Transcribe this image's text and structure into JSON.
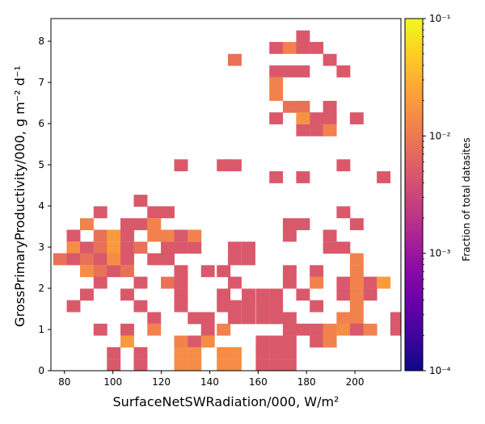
{
  "chart_data": {
    "type": "heatmap",
    "xlabel": "SurfaceNetSWRadiation/000,  W/m²",
    "ylabel": "GrossPrimaryProductivity/000,  g m⁻² d⁻¹",
    "x_ticks": [
      "80",
      "100",
      "120",
      "140",
      "160",
      "180",
      "200"
    ],
    "x_tick_values": [
      80,
      100,
      120,
      140,
      160,
      180,
      200
    ],
    "y_ticks": [
      "0",
      "1",
      "2",
      "3",
      "4",
      "5",
      "6",
      "7",
      "8"
    ],
    "y_tick_values": [
      0,
      1,
      2,
      3,
      4,
      5,
      6,
      7,
      8
    ],
    "xlim": [
      74.4,
      219.0
    ],
    "ylim": [
      0,
      8.55
    ],
    "bin_width_x": 5.55,
    "bin_height_y": 0.285,
    "colorbar": {
      "label": "Fraction of total datasites",
      "scale": "log",
      "range": [
        0.0001,
        0.1
      ],
      "tick_labels": [
        "10⁻⁴",
        "10⁻³",
        "10⁻²",
        "10⁻¹"
      ],
      "tick_values": [
        0.0001,
        0.001,
        0.01,
        0.1
      ],
      "colormap": "plasma"
    },
    "cells": [
      [
        178.5,
        8.12,
        0.0048
      ],
      [
        167.4,
        7.84,
        0.0048
      ],
      [
        173.0,
        7.84,
        0.012
      ],
      [
        178.5,
        7.84,
        0.0048
      ],
      [
        184.1,
        7.84,
        0.0048
      ],
      [
        150.3,
        7.55,
        0.0084
      ],
      [
        189.6,
        7.55,
        0.0048
      ],
      [
        167.4,
        7.27,
        0.0048
      ],
      [
        173.0,
        7.27,
        0.0048
      ],
      [
        178.5,
        7.27,
        0.0048
      ],
      [
        195.2,
        7.27,
        0.0048
      ],
      [
        167.4,
        6.98,
        0.012
      ],
      [
        167.4,
        6.7,
        0.012
      ],
      [
        173.0,
        6.41,
        0.0084
      ],
      [
        178.5,
        6.41,
        0.0084
      ],
      [
        189.6,
        6.41,
        0.0048
      ],
      [
        167.4,
        6.13,
        0.0048
      ],
      [
        178.5,
        6.13,
        0.017
      ],
      [
        184.1,
        6.13,
        0.0048
      ],
      [
        189.6,
        6.13,
        0.0048
      ],
      [
        200.7,
        6.13,
        0.0048
      ],
      [
        178.5,
        5.84,
        0.0048
      ],
      [
        184.1,
        5.84,
        0.0048
      ],
      [
        189.6,
        5.84,
        0.012
      ],
      [
        128.1,
        4.99,
        0.0048
      ],
      [
        145.7,
        4.99,
        0.0048
      ],
      [
        150.3,
        4.99,
        0.0048
      ],
      [
        195.2,
        4.99,
        0.0048
      ],
      [
        167.4,
        4.7,
        0.0048
      ],
      [
        178.5,
        4.7,
        0.0048
      ],
      [
        211.8,
        4.7,
        0.0048
      ],
      [
        111.4,
        4.13,
        0.0048
      ],
      [
        94.8,
        3.85,
        0.0048
      ],
      [
        117.0,
        3.85,
        0.0048
      ],
      [
        122.6,
        3.85,
        0.0048
      ],
      [
        195.2,
        3.85,
        0.0048
      ],
      [
        89.2,
        3.56,
        0.012
      ],
      [
        105.9,
        3.56,
        0.0048
      ],
      [
        111.4,
        3.56,
        0.0048
      ],
      [
        117.0,
        3.56,
        0.012
      ],
      [
        173.0,
        3.56,
        0.0048
      ],
      [
        178.5,
        3.56,
        0.0048
      ],
      [
        200.7,
        3.56,
        0.0048
      ],
      [
        83.7,
        3.28,
        0.0048
      ],
      [
        94.8,
        3.28,
        0.0084
      ],
      [
        100.3,
        3.28,
        0.02
      ],
      [
        105.9,
        3.28,
        0.0048
      ],
      [
        117.0,
        3.28,
        0.012
      ],
      [
        122.6,
        3.28,
        0.012
      ],
      [
        128.1,
        3.28,
        0.0048
      ],
      [
        133.7,
        3.28,
        0.012
      ],
      [
        173.0,
        3.28,
        0.0048
      ],
      [
        189.6,
        3.28,
        0.0048
      ],
      [
        83.7,
        2.99,
        0.015
      ],
      [
        89.2,
        2.99,
        0.0048
      ],
      [
        94.8,
        2.99,
        0.0084
      ],
      [
        100.3,
        2.99,
        0.02
      ],
      [
        105.9,
        2.99,
        0.0048
      ],
      [
        111.4,
        2.99,
        0.0084
      ],
      [
        122.6,
        2.99,
        0.0048
      ],
      [
        128.1,
        2.99,
        0.0048
      ],
      [
        133.7,
        2.99,
        0.0048
      ],
      [
        150.3,
        2.99,
        0.0048
      ],
      [
        156.0,
        2.99,
        0.0048
      ],
      [
        189.6,
        2.99,
        0.0048
      ],
      [
        195.2,
        2.99,
        0.0048
      ],
      [
        78.1,
        2.71,
        0.0084
      ],
      [
        83.7,
        2.71,
        0.0048
      ],
      [
        89.2,
        2.71,
        0.0084
      ],
      [
        94.8,
        2.71,
        0.0048
      ],
      [
        100.3,
        2.71,
        0.015
      ],
      [
        105.9,
        2.71,
        0.0048
      ],
      [
        117.0,
        2.71,
        0.0048
      ],
      [
        122.6,
        2.71,
        0.0048
      ],
      [
        150.3,
        2.71,
        0.0048
      ],
      [
        156.0,
        2.71,
        0.0048
      ],
      [
        200.7,
        2.71,
        0.012
      ],
      [
        89.2,
        2.42,
        0.015
      ],
      [
        94.8,
        2.42,
        0.0084
      ],
      [
        100.3,
        2.42,
        0.0048
      ],
      [
        105.9,
        2.42,
        0.0084
      ],
      [
        128.1,
        2.42,
        0.0048
      ],
      [
        139.2,
        2.42,
        0.0048
      ],
      [
        145.7,
        2.42,
        0.0048
      ],
      [
        173.0,
        2.42,
        0.0048
      ],
      [
        184.1,
        2.42,
        0.0048
      ],
      [
        200.7,
        2.42,
        0.012
      ],
      [
        94.8,
        2.14,
        0.0048
      ],
      [
        111.4,
        2.14,
        0.0048
      ],
      [
        122.6,
        2.14,
        0.0084
      ],
      [
        128.1,
        2.14,
        0.0048
      ],
      [
        150.3,
        2.14,
        0.0048
      ],
      [
        173.0,
        2.14,
        0.0048
      ],
      [
        184.1,
        2.14,
        0.012
      ],
      [
        195.2,
        2.14,
        0.0048
      ],
      [
        200.7,
        2.14,
        0.012
      ],
      [
        206.3,
        2.14,
        0.0048
      ],
      [
        211.8,
        2.14,
        0.02
      ],
      [
        89.2,
        1.85,
        0.0048
      ],
      [
        105.9,
        1.85,
        0.0048
      ],
      [
        128.1,
        1.85,
        0.0048
      ],
      [
        145.7,
        1.85,
        0.0048
      ],
      [
        156.0,
        1.85,
        0.0048
      ],
      [
        161.8,
        1.85,
        0.0048
      ],
      [
        167.4,
        1.85,
        0.0048
      ],
      [
        178.5,
        1.85,
        0.0048
      ],
      [
        195.2,
        1.85,
        0.0048
      ],
      [
        200.7,
        1.85,
        0.012
      ],
      [
        206.3,
        1.85,
        0.0048
      ],
      [
        83.7,
        1.57,
        0.0048
      ],
      [
        111.4,
        1.57,
        0.0048
      ],
      [
        128.1,
        1.57,
        0.0048
      ],
      [
        145.7,
        1.57,
        0.0048
      ],
      [
        150.3,
        1.57,
        0.0048
      ],
      [
        156.0,
        1.57,
        0.0048
      ],
      [
        161.8,
        1.57,
        0.0048
      ],
      [
        167.4,
        1.57,
        0.0048
      ],
      [
        184.1,
        1.57,
        0.0048
      ],
      [
        200.7,
        1.57,
        0.012
      ],
      [
        117.0,
        1.28,
        0.0048
      ],
      [
        133.7,
        1.28,
        0.0048
      ],
      [
        139.2,
        1.28,
        0.0048
      ],
      [
        150.3,
        1.28,
        0.0048
      ],
      [
        156.0,
        1.28,
        0.0048
      ],
      [
        161.8,
        1.28,
        0.0048
      ],
      [
        167.4,
        1.28,
        0.0048
      ],
      [
        173.0,
        1.28,
        0.0048
      ],
      [
        195.2,
        1.28,
        0.012
      ],
      [
        200.7,
        1.28,
        0.012
      ],
      [
        217.4,
        1.28,
        0.0048
      ],
      [
        94.8,
        1.0,
        0.0048
      ],
      [
        105.9,
        1.0,
        0.0048
      ],
      [
        117.0,
        1.0,
        0.012
      ],
      [
        139.2,
        1.0,
        0.0048
      ],
      [
        145.7,
        1.0,
        0.012
      ],
      [
        173.0,
        1.0,
        0.0048
      ],
      [
        178.5,
        1.0,
        0.0048
      ],
      [
        184.1,
        1.0,
        0.0048
      ],
      [
        189.6,
        1.0,
        0.012
      ],
      [
        195.2,
        1.0,
        0.015
      ],
      [
        200.7,
        1.0,
        0.0048
      ],
      [
        206.3,
        1.0,
        0.012
      ],
      [
        217.4,
        1.0,
        0.0048
      ],
      [
        105.9,
        0.71,
        0.02
      ],
      [
        128.1,
        0.71,
        0.012
      ],
      [
        133.7,
        0.71,
        0.0048
      ],
      [
        139.2,
        0.71,
        0.015
      ],
      [
        161.8,
        0.71,
        0.0048
      ],
      [
        167.4,
        0.71,
        0.0048
      ],
      [
        173.0,
        0.71,
        0.0048
      ],
      [
        184.1,
        0.71,
        0.0048
      ],
      [
        189.6,
        0.71,
        0.012
      ],
      [
        100.3,
        0.43,
        0.0048
      ],
      [
        111.4,
        0.43,
        0.0048
      ],
      [
        128.1,
        0.43,
        0.015
      ],
      [
        133.7,
        0.43,
        0.015
      ],
      [
        145.7,
        0.43,
        0.015
      ],
      [
        150.3,
        0.43,
        0.015
      ],
      [
        161.8,
        0.43,
        0.0048
      ],
      [
        167.4,
        0.43,
        0.0048
      ],
      [
        173.0,
        0.43,
        0.0048
      ],
      [
        100.3,
        0.14,
        0.0048
      ],
      [
        111.4,
        0.14,
        0.0048
      ],
      [
        128.1,
        0.14,
        0.015
      ],
      [
        133.7,
        0.14,
        0.015
      ],
      [
        145.7,
        0.14,
        0.015
      ],
      [
        150.3,
        0.14,
        0.015
      ],
      [
        161.8,
        0.14,
        0.0048
      ],
      [
        167.4,
        0.14,
        0.0048
      ],
      [
        173.0,
        0.14,
        0.0048
      ]
    ]
  }
}
